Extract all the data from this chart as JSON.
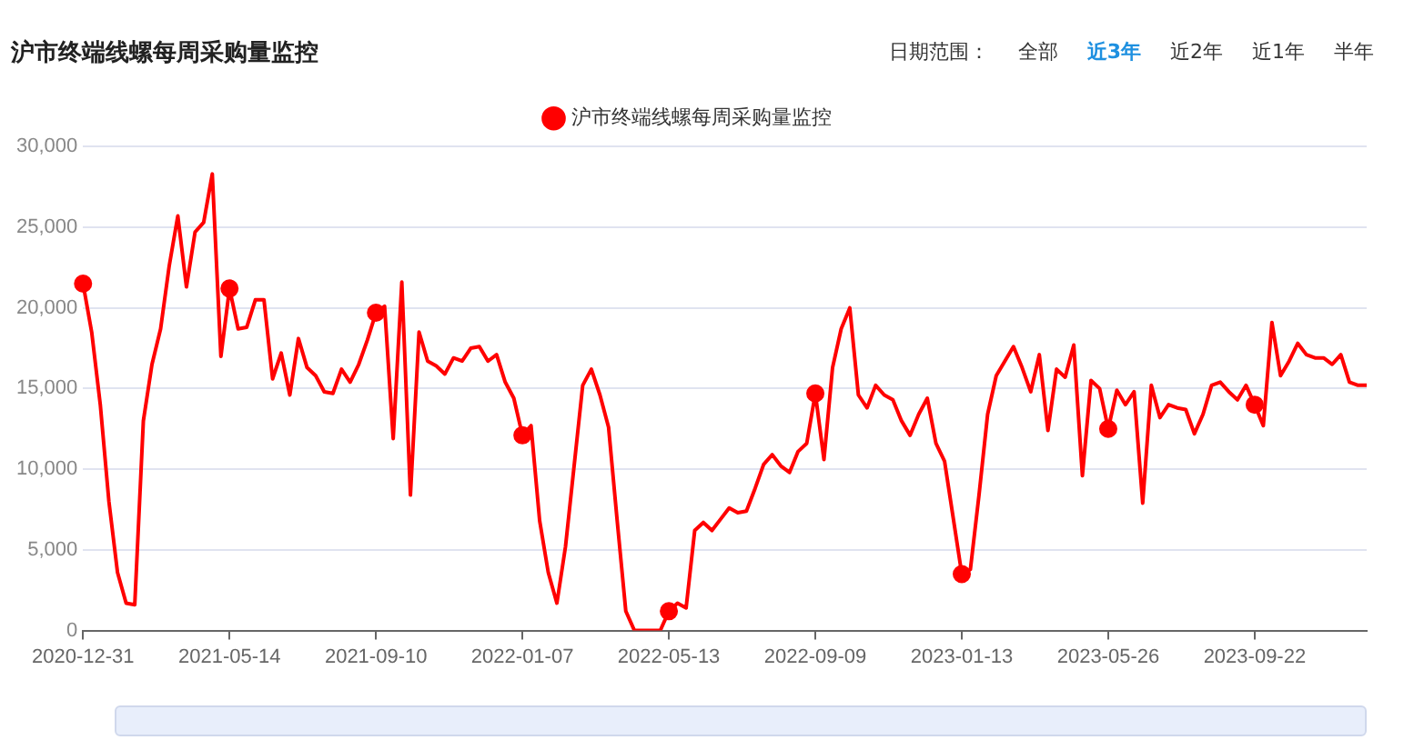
{
  "chart_data": {
    "type": "line",
    "title": "沪市终端线螺每周采购量监控",
    "annotations": [
      "日期范围：",
      "全部",
      "近3年",
      "近2年",
      "近1年",
      "半年"
    ],
    "categories": [
      "2020-12-31",
      null,
      null,
      null,
      null,
      null,
      null,
      null,
      null,
      null,
      null,
      null,
      null,
      null,
      null,
      null,
      null,
      "2021-05-14",
      null,
      null,
      null,
      null,
      null,
      null,
      null,
      null,
      null,
      null,
      null,
      null,
      null,
      null,
      null,
      null,
      "2021-09-10",
      null,
      null,
      null,
      null,
      null,
      null,
      null,
      null,
      null,
      null,
      null,
      null,
      null,
      null,
      null,
      null,
      "2022-01-07",
      null,
      null,
      null,
      null,
      null,
      null,
      null,
      null,
      null,
      null,
      null,
      null,
      null,
      null,
      null,
      null,
      "2022-05-13",
      null,
      null,
      null,
      null,
      null,
      null,
      null,
      null,
      null,
      null,
      null,
      null,
      null,
      null,
      null,
      null,
      "2022-09-09",
      null,
      null,
      null,
      null,
      null,
      null,
      null,
      null,
      null,
      null,
      null,
      null,
      null,
      null,
      null,
      null,
      "2023-01-13",
      null,
      null,
      null,
      null,
      null,
      null,
      null,
      null,
      null,
      null,
      null,
      null,
      null,
      null,
      null,
      null,
      "2023-05-26",
      null,
      null,
      null,
      null,
      null,
      null,
      null,
      null,
      null,
      null,
      null,
      null,
      null,
      null,
      null,
      null,
      "2023-09-22",
      null,
      null,
      null,
      null,
      null,
      null,
      null,
      null,
      null,
      null,
      null,
      null,
      null
    ],
    "series": [
      {
        "name": "沪市终端线螺每周采购量监控",
        "color": "#ff0000",
        "values": [
          21500,
          18500,
          14000,
          8000,
          3600,
          1700,
          1600,
          13000,
          16500,
          18700,
          22600,
          25700,
          21300,
          24700,
          25300,
          28300,
          17000,
          21200,
          18700,
          18800,
          20500,
          20500,
          15600,
          17200,
          14600,
          18100,
          16300,
          15800,
          14800,
          14700,
          16200,
          15400,
          16500,
          18000,
          19700,
          20100,
          11900,
          21600,
          8400,
          18500,
          16700,
          16400,
          15900,
          16900,
          16700,
          17500,
          17600,
          16700,
          17100,
          15400,
          14400,
          12100,
          12700,
          6800,
          3600,
          1700,
          5200,
          10200,
          15200,
          16200,
          14600,
          12600,
          6800,
          1200,
          0,
          0,
          0,
          0,
          1200,
          1700,
          1400,
          6200,
          6700,
          6200,
          6900,
          7600,
          7300,
          7400,
          8800,
          10300,
          10900,
          10200,
          9800,
          11100,
          11600,
          14700,
          10600,
          16300,
          18700,
          20000,
          14600,
          13800,
          15200,
          14600,
          14300,
          13000,
          12100,
          13400,
          14400,
          11600,
          10500,
          7000,
          3500,
          3800,
          8400,
          13400,
          15800,
          16700,
          17600,
          16300,
          14800,
          17100,
          12400,
          16200,
          15700,
          17700,
          9600,
          15500,
          15000,
          12500,
          14900,
          14000,
          14800,
          7900,
          15200,
          13200,
          14000,
          13800,
          13700,
          12200,
          13400,
          15200,
          15400,
          14800,
          14300,
          15200,
          14000,
          12700,
          19100,
          15800,
          16700,
          17800,
          17100,
          16900,
          16900,
          16500,
          17100,
          15400,
          15200,
          15200
        ]
      }
    ],
    "ylim": [
      0,
      30000
    ],
    "yticks": [
      0,
      {
        "value": 5000,
        "label": "5,000"
      },
      {
        "value": 10000,
        "label": "10,000"
      },
      {
        "value": 15000,
        "label": "15,000"
      },
      {
        "value": 20000,
        "label": "20,000"
      },
      {
        "value": 25000,
        "label": "25,000"
      },
      {
        "value": 30000,
        "label": "30,000"
      }
    ],
    "grid": "y",
    "legend": "top",
    "line_style": "solid"
  }
}
